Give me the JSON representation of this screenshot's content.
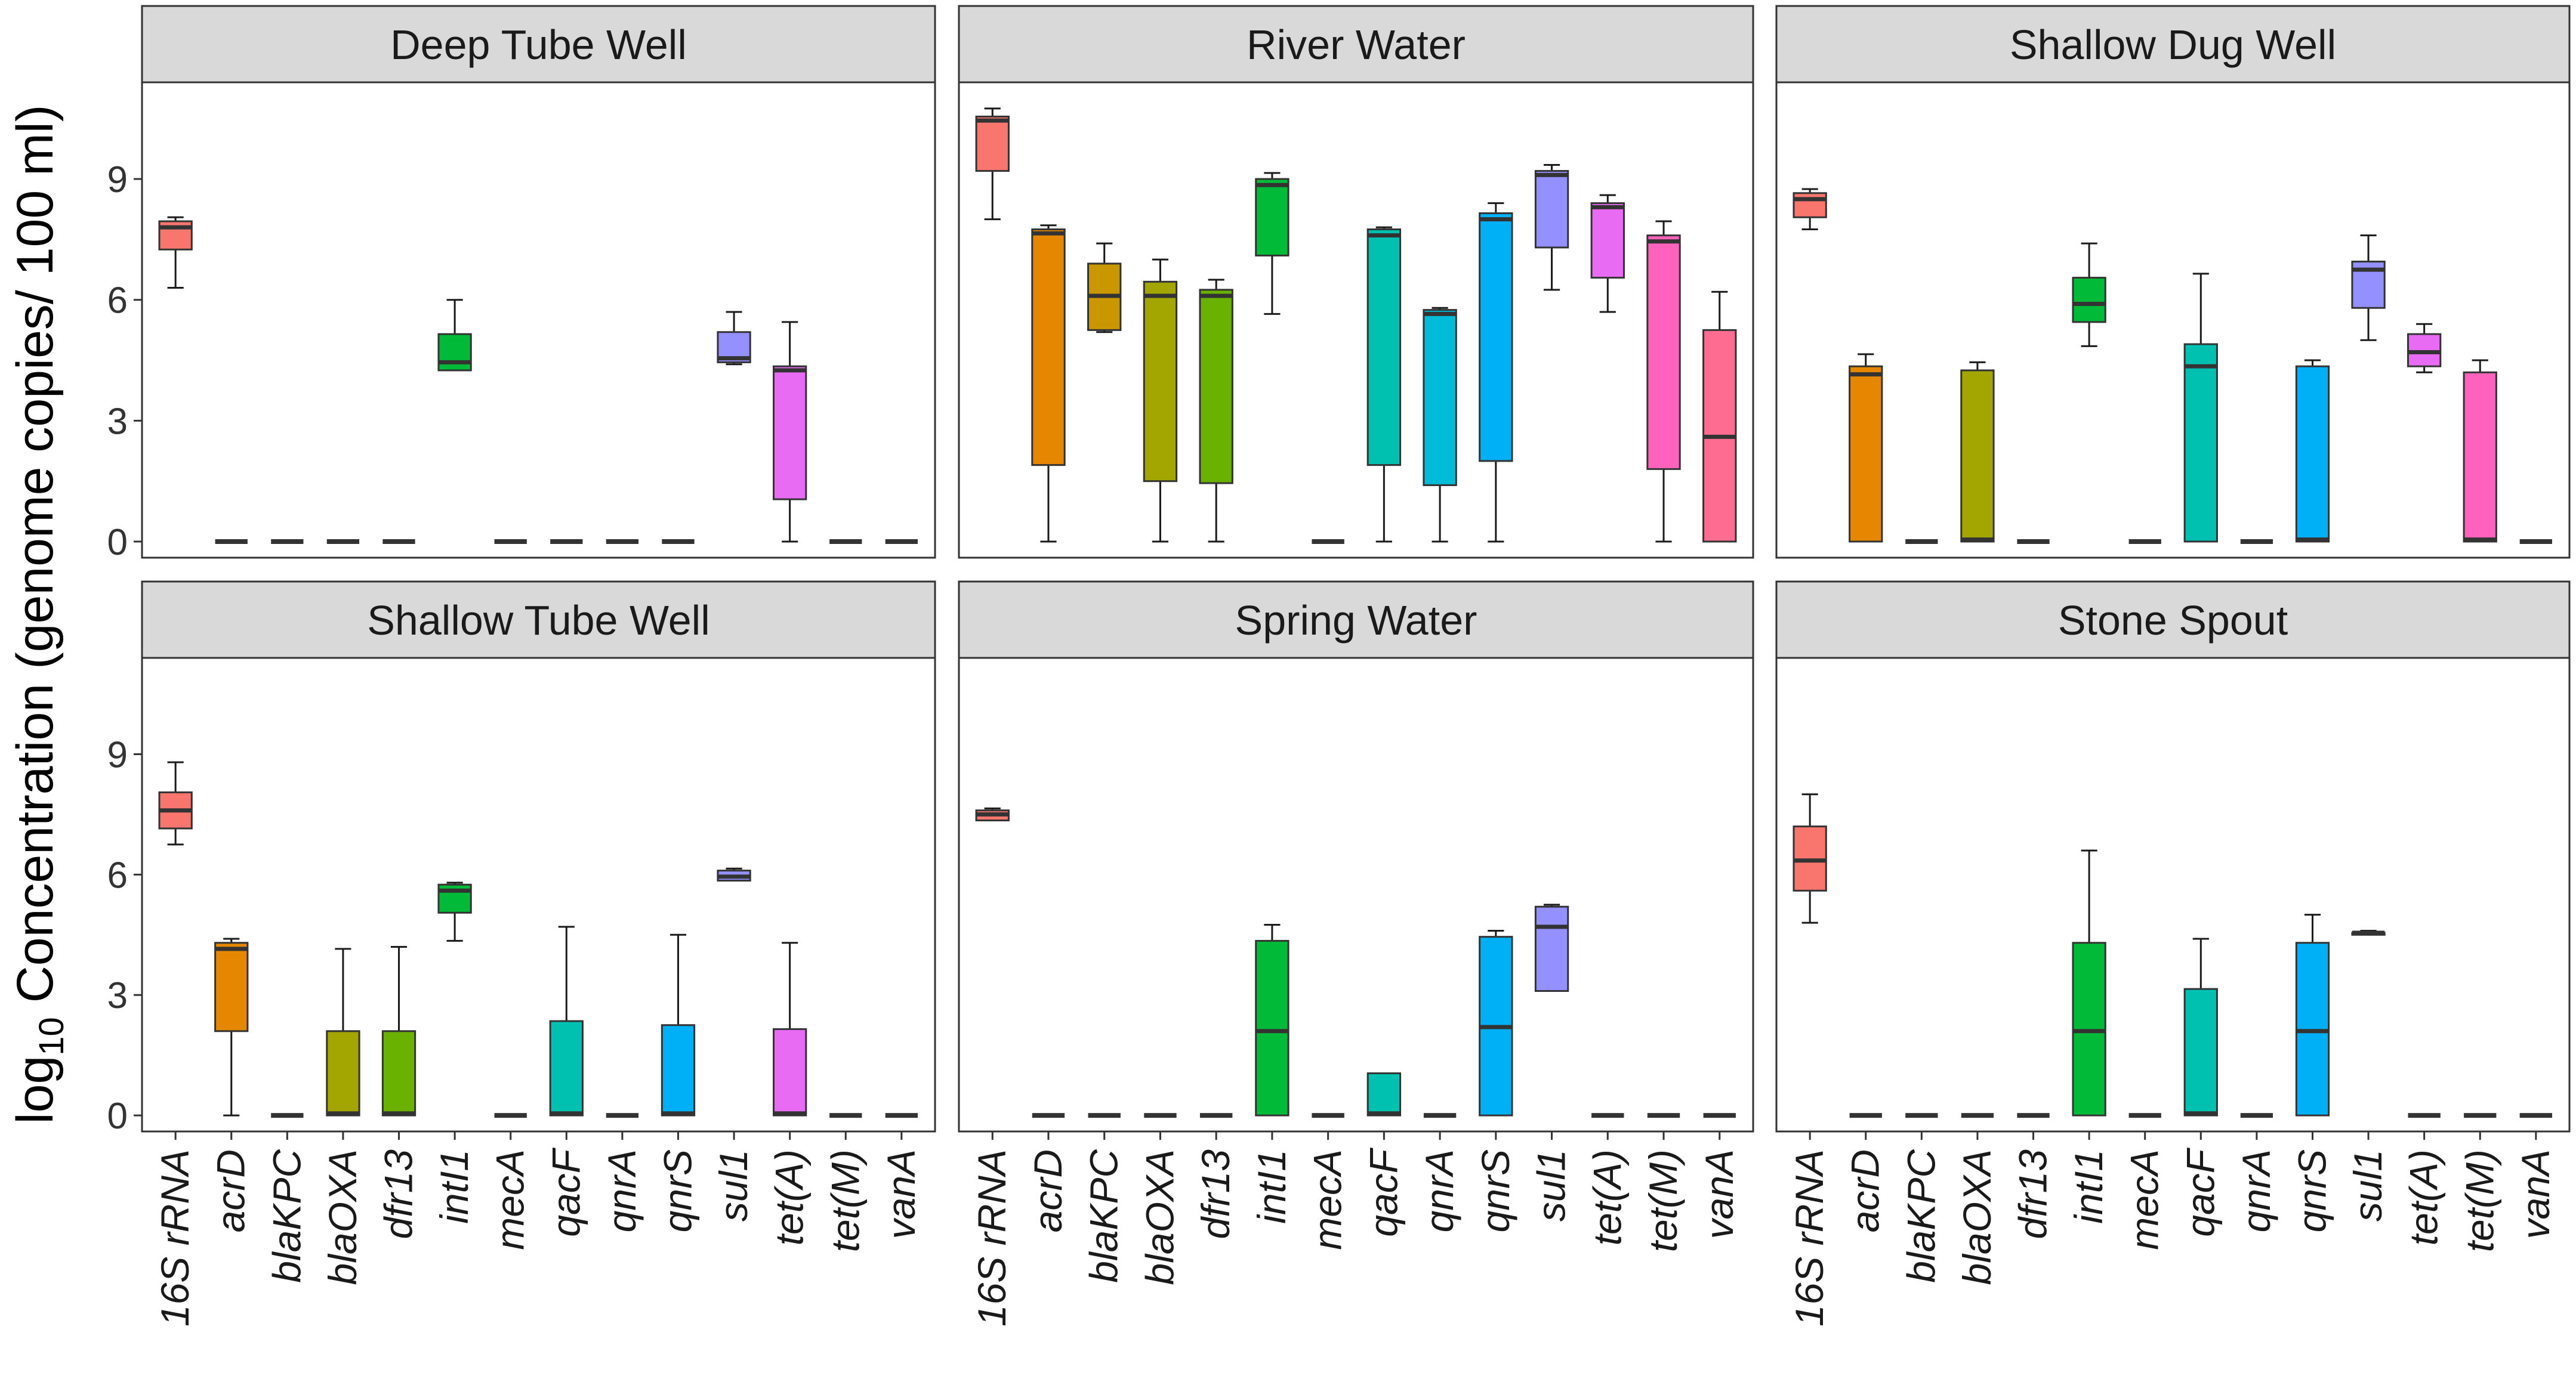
{
  "chart_data": {
    "type": "boxplot",
    "ylabel_prefix": "log",
    "ylabel_subscript": "10",
    "ylabel_rest": " Concentration (genome copies/ 100 ml)",
    "ylim": [
      -0.4,
      11.4
    ],
    "yticks": [
      0,
      3,
      6,
      9
    ],
    "categories": [
      "16S rRNA",
      "acrD",
      "blaKPC",
      "blaOXA",
      "dfr13",
      "intI1",
      "mecA",
      "qacF",
      "qnrA",
      "qnrS",
      "sul1",
      "tet(A)",
      "tet(M)",
      "vanA"
    ],
    "colors": {
      "16S rRNA": "#F8766D",
      "acrD": "#E58700",
      "blaKPC": "#C99800",
      "blaOXA": "#A3A500",
      "dfr13": "#6BB100",
      "intI1": "#00BA38",
      "mecA": "#00BF7D",
      "qacF": "#00C0AF",
      "qnrA": "#00BCD8",
      "qnrS": "#00B0F6",
      "sul1": "#9590FF",
      "tet(A)": "#E76BF3",
      "tet(M)": "#FF62BC",
      "vanA": "#FF6C91"
    },
    "panels": [
      {
        "title": "Deep Tube Well",
        "boxes": [
          {
            "gene": "16S rRNA",
            "min": 6.3,
            "q1": 7.25,
            "median": 7.8,
            "q3": 7.95,
            "max": 8.05
          },
          {
            "gene": "acrD",
            "min": 0,
            "q1": 0,
            "median": 0,
            "q3": 0,
            "max": 0
          },
          {
            "gene": "blaKPC",
            "min": 0,
            "q1": 0,
            "median": 0,
            "q3": 0,
            "max": 0
          },
          {
            "gene": "blaOXA",
            "min": 0,
            "q1": 0,
            "median": 0,
            "q3": 0,
            "max": 0
          },
          {
            "gene": "dfr13",
            "min": 0,
            "q1": 0,
            "median": 0,
            "q3": 0,
            "max": 0
          },
          {
            "gene": "intI1",
            "min": 4.25,
            "q1": 4.25,
            "median": 4.45,
            "q3": 5.15,
            "max": 6.0
          },
          {
            "gene": "mecA",
            "min": 0,
            "q1": 0,
            "median": 0,
            "q3": 0,
            "max": 0
          },
          {
            "gene": "qacF",
            "min": 0,
            "q1": 0,
            "median": 0,
            "q3": 0,
            "max": 0
          },
          {
            "gene": "qnrA",
            "min": 0,
            "q1": 0,
            "median": 0,
            "q3": 0,
            "max": 0
          },
          {
            "gene": "qnrS",
            "min": 0,
            "q1": 0,
            "median": 0,
            "q3": 0,
            "max": 0
          },
          {
            "gene": "sul1",
            "min": 4.4,
            "q1": 4.45,
            "median": 4.55,
            "q3": 5.2,
            "max": 5.7
          },
          {
            "gene": "tet(A)",
            "min": 0,
            "q1": 1.05,
            "median": 4.25,
            "q3": 4.35,
            "max": 5.45
          },
          {
            "gene": "tet(M)",
            "min": 0,
            "q1": 0,
            "median": 0,
            "q3": 0,
            "max": 0
          },
          {
            "gene": "vanA",
            "min": 0,
            "q1": 0,
            "median": 0,
            "q3": 0,
            "max": 0
          }
        ]
      },
      {
        "title": "River Water",
        "boxes": [
          {
            "gene": "16S rRNA",
            "min": 8.0,
            "q1": 9.2,
            "median": 10.45,
            "q3": 10.55,
            "max": 10.75
          },
          {
            "gene": "acrD",
            "min": 0,
            "q1": 1.9,
            "median": 7.65,
            "q3": 7.75,
            "max": 7.85
          },
          {
            "gene": "blaKPC",
            "min": 5.2,
            "q1": 5.25,
            "median": 6.1,
            "q3": 6.9,
            "max": 7.4
          },
          {
            "gene": "blaOXA",
            "min": 0,
            "q1": 1.5,
            "median": 6.1,
            "q3": 6.45,
            "max": 7.0
          },
          {
            "gene": "dfr13",
            "min": 0,
            "q1": 1.45,
            "median": 6.1,
            "q3": 6.25,
            "max": 6.5
          },
          {
            "gene": "intI1",
            "min": 5.65,
            "q1": 7.1,
            "median": 8.85,
            "q3": 9.0,
            "max": 9.15
          },
          {
            "gene": "mecA",
            "min": 0,
            "q1": 0,
            "median": 0,
            "q3": 0,
            "max": 0
          },
          {
            "gene": "qacF",
            "min": 0,
            "q1": 1.9,
            "median": 7.6,
            "q3": 7.75,
            "max": 7.8
          },
          {
            "gene": "qnrA",
            "min": 0,
            "q1": 1.4,
            "median": 5.65,
            "q3": 5.75,
            "max": 5.8
          },
          {
            "gene": "qnrS",
            "min": 0,
            "q1": 2.0,
            "median": 8.0,
            "q3": 8.15,
            "max": 8.4
          },
          {
            "gene": "sul1",
            "min": 6.25,
            "q1": 7.3,
            "median": 9.1,
            "q3": 9.2,
            "max": 9.35
          },
          {
            "gene": "tet(A)",
            "min": 5.7,
            "q1": 6.55,
            "median": 8.3,
            "q3": 8.4,
            "max": 8.6
          },
          {
            "gene": "tet(M)",
            "min": 0,
            "q1": 1.8,
            "median": 7.45,
            "q3": 7.6,
            "max": 7.95
          },
          {
            "gene": "vanA",
            "min": 0,
            "q1": 0,
            "median": 2.6,
            "q3": 5.25,
            "max": 6.2
          }
        ]
      },
      {
        "title": "Shallow Dug Well",
        "boxes": [
          {
            "gene": "16S rRNA",
            "min": 7.75,
            "q1": 8.05,
            "median": 8.5,
            "q3": 8.65,
            "max": 8.75
          },
          {
            "gene": "acrD",
            "min": 0,
            "q1": 0,
            "median": 4.15,
            "q3": 4.35,
            "max": 4.65
          },
          {
            "gene": "blaKPC",
            "min": 0,
            "q1": 0,
            "median": 0,
            "q3": 0,
            "max": 0
          },
          {
            "gene": "blaOXA",
            "min": 0,
            "q1": 0,
            "median": 0.05,
            "q3": 4.25,
            "max": 4.45
          },
          {
            "gene": "dfr13",
            "min": 0,
            "q1": 0,
            "median": 0,
            "q3": 0,
            "max": 0
          },
          {
            "gene": "intI1",
            "min": 4.85,
            "q1": 5.45,
            "median": 5.9,
            "q3": 6.55,
            "max": 7.4
          },
          {
            "gene": "mecA",
            "min": 0,
            "q1": 0,
            "median": 0,
            "q3": 0,
            "max": 0
          },
          {
            "gene": "qacF",
            "min": 0,
            "q1": 0,
            "median": 4.35,
            "q3": 4.9,
            "max": 6.65
          },
          {
            "gene": "qnrA",
            "min": 0,
            "q1": 0,
            "median": 0,
            "q3": 0,
            "max": 0
          },
          {
            "gene": "qnrS",
            "min": 0,
            "q1": 0,
            "median": 0.05,
            "q3": 4.35,
            "max": 4.5
          },
          {
            "gene": "sul1",
            "min": 5.0,
            "q1": 5.8,
            "median": 6.75,
            "q3": 6.95,
            "max": 7.6
          },
          {
            "gene": "tet(A)",
            "min": 4.2,
            "q1": 4.35,
            "median": 4.7,
            "q3": 5.15,
            "max": 5.4
          },
          {
            "gene": "tet(M)",
            "min": 0,
            "q1": 0,
            "median": 0.05,
            "q3": 4.2,
            "max": 4.5
          },
          {
            "gene": "vanA",
            "min": 0,
            "q1": 0,
            "median": 0,
            "q3": 0,
            "max": 0
          }
        ]
      },
      {
        "title": "Shallow Tube Well",
        "boxes": [
          {
            "gene": "16S rRNA",
            "min": 6.75,
            "q1": 7.15,
            "median": 7.6,
            "q3": 8.05,
            "max": 8.8
          },
          {
            "gene": "acrD",
            "min": 0,
            "q1": 2.1,
            "median": 4.15,
            "q3": 4.3,
            "max": 4.4
          },
          {
            "gene": "blaKPC",
            "min": 0,
            "q1": 0,
            "median": 0,
            "q3": 0,
            "max": 0
          },
          {
            "gene": "blaOXA",
            "min": 0,
            "q1": 0,
            "median": 0.05,
            "q3": 2.1,
            "max": 4.15
          },
          {
            "gene": "dfr13",
            "min": 0,
            "q1": 0,
            "median": 0.05,
            "q3": 2.1,
            "max": 4.2
          },
          {
            "gene": "intI1",
            "min": 4.35,
            "q1": 5.05,
            "median": 5.6,
            "q3": 5.75,
            "max": 5.8
          },
          {
            "gene": "mecA",
            "min": 0,
            "q1": 0,
            "median": 0,
            "q3": 0,
            "max": 0
          },
          {
            "gene": "qacF",
            "min": 0,
            "q1": 0,
            "median": 0.05,
            "q3": 2.35,
            "max": 4.7
          },
          {
            "gene": "qnrA",
            "min": 0,
            "q1": 0,
            "median": 0,
            "q3": 0,
            "max": 0
          },
          {
            "gene": "qnrS",
            "min": 0,
            "q1": 0,
            "median": 0.05,
            "q3": 2.25,
            "max": 4.5
          },
          {
            "gene": "sul1",
            "min": 5.85,
            "q1": 5.85,
            "median": 5.95,
            "q3": 6.1,
            "max": 6.15
          },
          {
            "gene": "tet(A)",
            "min": 0,
            "q1": 0,
            "median": 0.05,
            "q3": 2.15,
            "max": 4.3
          },
          {
            "gene": "tet(M)",
            "min": 0,
            "q1": 0,
            "median": 0,
            "q3": 0,
            "max": 0
          },
          {
            "gene": "vanA",
            "min": 0,
            "q1": 0,
            "median": 0,
            "q3": 0,
            "max": 0
          }
        ]
      },
      {
        "title": "Spring Water",
        "boxes": [
          {
            "gene": "16S rRNA",
            "min": 7.35,
            "q1": 7.35,
            "median": 7.5,
            "q3": 7.6,
            "max": 7.65
          },
          {
            "gene": "acrD",
            "min": 0,
            "q1": 0,
            "median": 0,
            "q3": 0,
            "max": 0
          },
          {
            "gene": "blaKPC",
            "min": 0,
            "q1": 0,
            "median": 0,
            "q3": 0,
            "max": 0
          },
          {
            "gene": "blaOXA",
            "min": 0,
            "q1": 0,
            "median": 0,
            "q3": 0,
            "max": 0
          },
          {
            "gene": "dfr13",
            "min": 0,
            "q1": 0,
            "median": 0,
            "q3": 0,
            "max": 0
          },
          {
            "gene": "intI1",
            "min": 0,
            "q1": 0,
            "median": 2.1,
            "q3": 4.35,
            "max": 4.75
          },
          {
            "gene": "mecA",
            "min": 0,
            "q1": 0,
            "median": 0,
            "q3": 0,
            "max": 0
          },
          {
            "gene": "qacF",
            "min": 0,
            "q1": 0,
            "median": 0.05,
            "q3": 1.05,
            "max": 1.05
          },
          {
            "gene": "qnrA",
            "min": 0,
            "q1": 0,
            "median": 0,
            "q3": 0,
            "max": 0
          },
          {
            "gene": "qnrS",
            "min": 0,
            "q1": 0,
            "median": 2.2,
            "q3": 4.45,
            "max": 4.6
          },
          {
            "gene": "sul1",
            "min": 3.1,
            "q1": 3.1,
            "median": 4.7,
            "q3": 5.2,
            "max": 5.25
          },
          {
            "gene": "tet(A)",
            "min": 0,
            "q1": 0,
            "median": 0,
            "q3": 0,
            "max": 0
          },
          {
            "gene": "tet(M)",
            "min": 0,
            "q1": 0,
            "median": 0,
            "q3": 0,
            "max": 0
          },
          {
            "gene": "vanA",
            "min": 0,
            "q1": 0,
            "median": 0,
            "q3": 0,
            "max": 0
          }
        ]
      },
      {
        "title": "Stone Spout",
        "boxes": [
          {
            "gene": "16S rRNA",
            "min": 4.8,
            "q1": 5.6,
            "median": 6.35,
            "q3": 7.2,
            "max": 8.0
          },
          {
            "gene": "acrD",
            "min": 0,
            "q1": 0,
            "median": 0,
            "q3": 0,
            "max": 0
          },
          {
            "gene": "blaKPC",
            "min": 0,
            "q1": 0,
            "median": 0,
            "q3": 0,
            "max": 0
          },
          {
            "gene": "blaOXA",
            "min": 0,
            "q1": 0,
            "median": 0,
            "q3": 0,
            "max": 0
          },
          {
            "gene": "dfr13",
            "min": 0,
            "q1": 0,
            "median": 0,
            "q3": 0,
            "max": 0
          },
          {
            "gene": "intI1",
            "min": 0,
            "q1": 0,
            "median": 2.1,
            "q3": 4.3,
            "max": 6.6
          },
          {
            "gene": "mecA",
            "min": 0,
            "q1": 0,
            "median": 0,
            "q3": 0,
            "max": 0
          },
          {
            "gene": "qacF",
            "min": 0,
            "q1": 0,
            "median": 0.05,
            "q3": 3.15,
            "max": 4.4
          },
          {
            "gene": "qnrA",
            "min": 0,
            "q1": 0,
            "median": 0,
            "q3": 0,
            "max": 0
          },
          {
            "gene": "qnrS",
            "min": 0,
            "q1": 0,
            "median": 2.1,
            "q3": 4.3,
            "max": 5.0
          },
          {
            "gene": "sul1",
            "min": 4.5,
            "q1": 4.5,
            "median": 4.55,
            "q3": 4.55,
            "max": 4.6
          },
          {
            "gene": "tet(A)",
            "min": 0,
            "q1": 0,
            "median": 0,
            "q3": 0,
            "max": 0
          },
          {
            "gene": "tet(M)",
            "min": 0,
            "q1": 0,
            "median": 0,
            "q3": 0,
            "max": 0
          },
          {
            "gene": "vanA",
            "min": 0,
            "q1": 0,
            "median": 0,
            "q3": 0,
            "max": 0
          }
        ]
      }
    ]
  }
}
